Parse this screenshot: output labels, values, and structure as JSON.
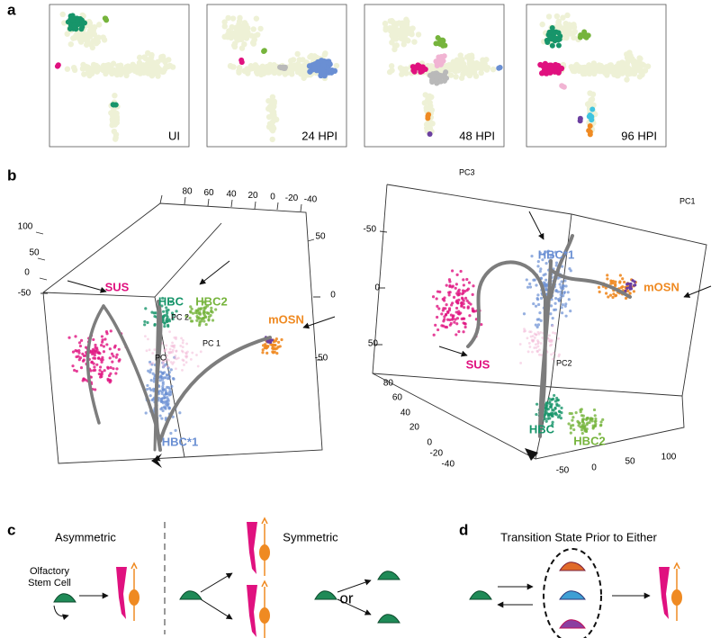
{
  "panel_a": {
    "label": "a",
    "insets": [
      "UI",
      "24 HPI",
      "48 HPI",
      "96 HPI"
    ]
  },
  "panel_b": {
    "label": "b",
    "left": {
      "clusters": [
        "SUS",
        "HBC",
        "HBC2",
        "mOSN",
        "HBC*1"
      ],
      "axes": [
        "PC 2",
        "PC 1",
        "PC"
      ],
      "ticks_top": [
        "80",
        "60",
        "40",
        "20",
        "0",
        "-20",
        "-40"
      ],
      "ticks_left": [
        "100",
        "50",
        "0",
        "-50"
      ],
      "ticks_right": [
        "50",
        "0",
        "-50"
      ]
    },
    "right": {
      "clusters": [
        "HBC*1",
        "mOSN",
        "SUS",
        "HBC",
        "HBC2"
      ],
      "axes": [
        "PC3",
        "PC1",
        "PC2"
      ],
      "ticks_left": [
        "-50",
        "0",
        "50"
      ],
      "ticks_depth": [
        "80",
        "60",
        "40",
        "20",
        "0",
        "-20",
        "-40"
      ],
      "ticks_bottom": [
        "-50",
        "0",
        "50",
        "100"
      ]
    }
  },
  "panel_c": {
    "label": "c",
    "asymmetric": "Asymmetric",
    "cell_name": [
      "Olfactory",
      "Stem Cell"
    ],
    "symmetric": "Symmetric",
    "or": "or"
  },
  "panel_d": {
    "label": "d",
    "title": "Transition State Prior to Either"
  }
}
